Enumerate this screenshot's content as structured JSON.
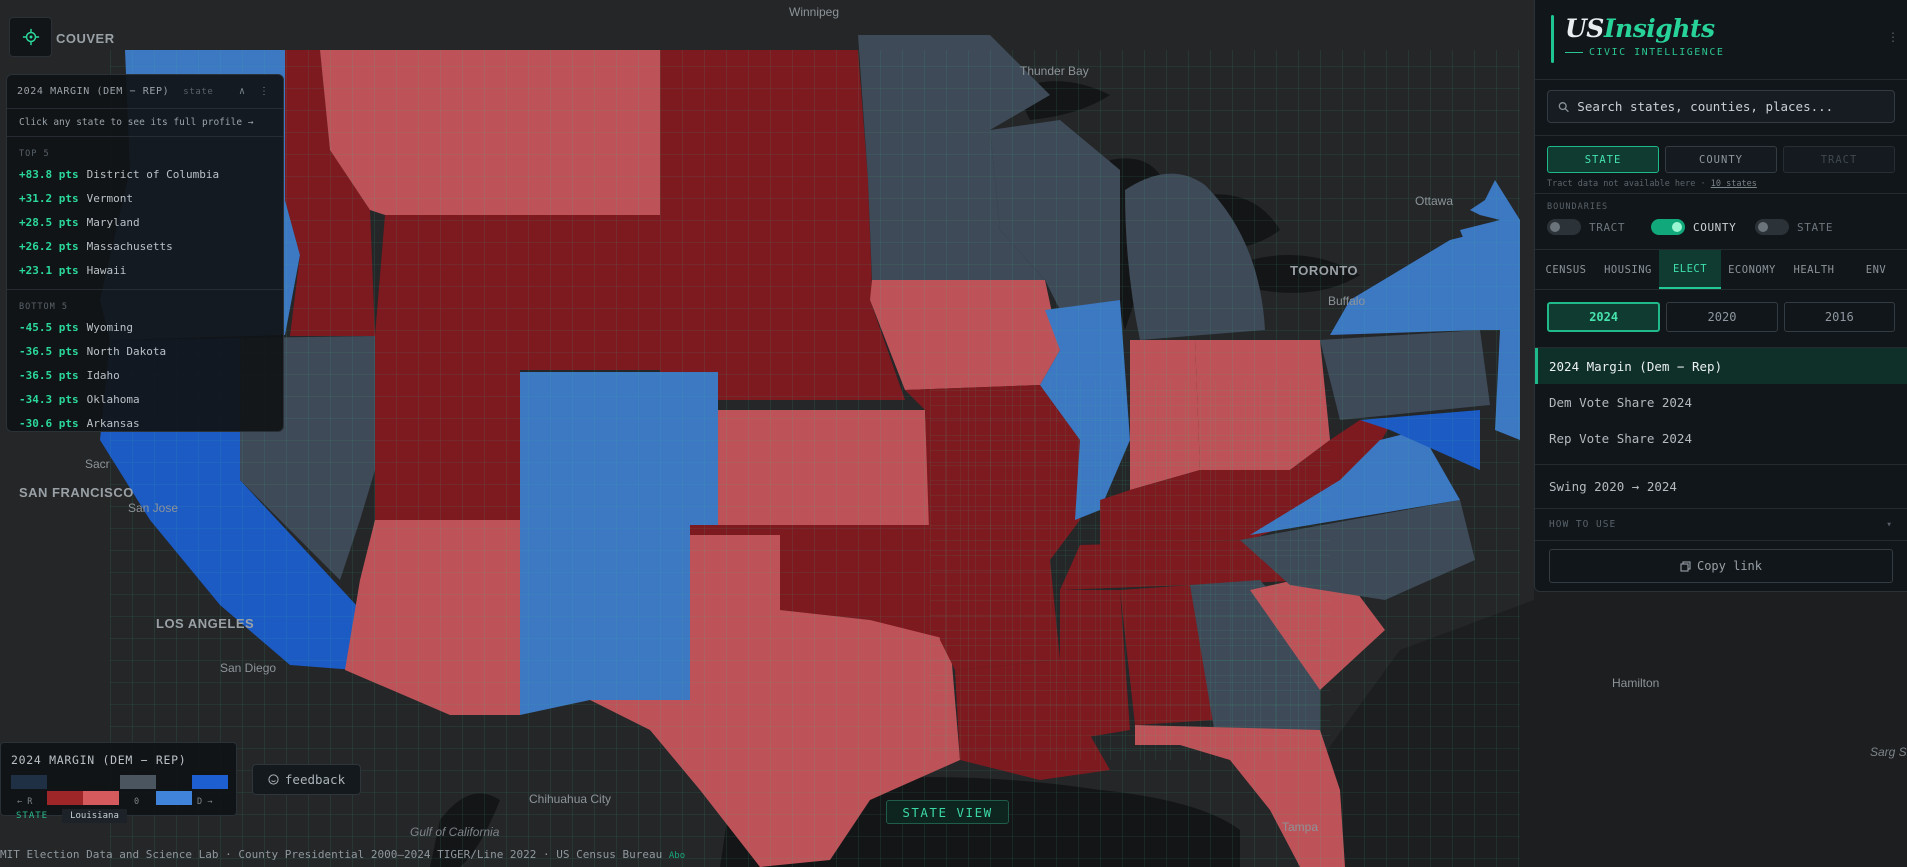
{
  "map": {
    "labels": {
      "winnipeg": "Winnipeg",
      "couver": "COUVER",
      "thunder_bay": "Thunder Bay",
      "ottawa": "Ottawa",
      "toronto": "TORONTO",
      "buffalo": "Buffalo",
      "sacramento": "Sacr",
      "san_francisco": "SAN FRANCISCO",
      "san_jose": "San Jose",
      "los_angeles": "LOS ANGELES",
      "san_diego": "San Diego",
      "chihuahua": "Chihuahua City",
      "gulf": "Gulf of California",
      "tampa": "Tampa",
      "hamilton": "Hamilton",
      "sargasso": "Sarg Se"
    },
    "colors": {
      "strong_dem": "#1c5bc4",
      "lean_dem": "#3d78c2",
      "tossup": "#3e4a57",
      "lean_rep": "#bd5358",
      "strong_rep": "#7d1a1f",
      "borders": "#2fb58c"
    }
  },
  "rank_panel": {
    "title": "2024 MARGIN (DEM − REP)",
    "subtitle": "state",
    "controls": "∧ ⋮",
    "hint": "Click any state to see its full profile →",
    "top_label": "TOP 5",
    "bottom_label": "BOTTOM 5",
    "top": [
      {
        "value": "+83.8 pts",
        "name": "District of Columbia"
      },
      {
        "value": "+31.2 pts",
        "name": "Vermont"
      },
      {
        "value": "+28.5 pts",
        "name": "Maryland"
      },
      {
        "value": "+26.2 pts",
        "name": "Massachusetts"
      },
      {
        "value": "+23.1 pts",
        "name": "Hawaii"
      }
    ],
    "bottom": [
      {
        "value": "-45.5 pts",
        "name": "Wyoming"
      },
      {
        "value": "-36.5 pts",
        "name": "North Dakota"
      },
      {
        "value": "-36.5 pts",
        "name": "Idaho"
      },
      {
        "value": "-34.3 pts",
        "name": "Oklahoma"
      },
      {
        "value": "-30.6 pts",
        "name": "Arkansas"
      }
    ]
  },
  "sidebar": {
    "brand_us": "US",
    "brand_insights": "Insights",
    "tagline": "CIVIC INTELLIGENCE",
    "menu": "⋮",
    "search_placeholder": "Search states, counties, places...",
    "geo_levels": [
      "STATE",
      "COUNTY",
      "TRACT"
    ],
    "geo_note": "Tract data not available here ·",
    "geo_note_link": "10 states",
    "boundaries_label": "BOUNDARIES",
    "boundary_toggles": [
      {
        "label": "TRACT",
        "on": false
      },
      {
        "label": "COUNTY",
        "on": true
      },
      {
        "label": "STATE",
        "on": false
      }
    ],
    "tabs": [
      "CENSUS",
      "HOUSING",
      "ELECT",
      "ECONOMY",
      "HEALTH",
      "ENV"
    ],
    "years": [
      "2024",
      "2020",
      "2016"
    ],
    "metrics": [
      "2024 Margin (Dem − Rep)",
      "Dem Vote Share 2024",
      "Rep Vote Share 2024",
      "Swing 2020 → 2024"
    ],
    "how_to": "HOW TO USE",
    "how_to_chev": "▾",
    "copy_link": "Copy link"
  },
  "legend": {
    "title": "2024 MARGIN (DEM − REP)",
    "left_end": "← R",
    "mid": "0",
    "right_end": "D →"
  },
  "feedback": "feedback",
  "state_view": "STATE VIEW",
  "breadcrumb": {
    "level": "STATE",
    "name": "Louisiana"
  },
  "attribution": {
    "text": "MIT Election Data and Science Lab · County Presidential 2000–2024   TIGER/Line 2022 · US Census Bureau",
    "tail": "Abo"
  }
}
